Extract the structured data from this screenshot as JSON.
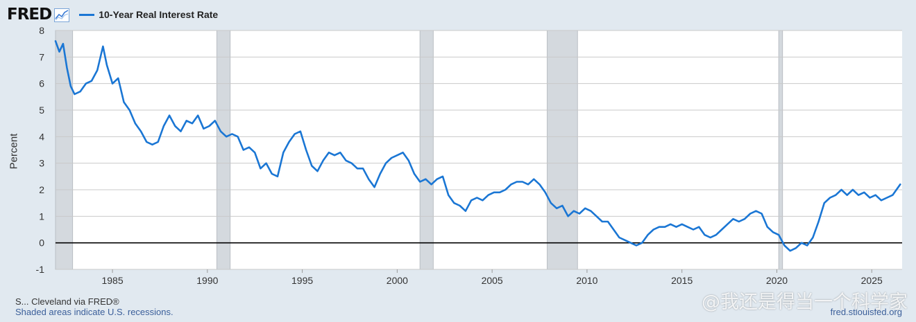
{
  "header": {
    "logo_text": "FRED",
    "logo_icon": "line-chart-icon",
    "legend_label": "10-Year Real Interest Rate"
  },
  "footer": {
    "source_text": "S... Cleveland via FRED®",
    "recession_note": "Shaded areas indicate U.S. recessions.",
    "site": "fred.stlouisfed.org"
  },
  "watermark": "@我还是得当一个科学家",
  "colors": {
    "line": "#1a76d4",
    "recession": "#d4d9de",
    "grid": "#c9c9c9",
    "zero_line": "#000000",
    "plot_bg": "#ffffff"
  },
  "chart_data": {
    "type": "line",
    "xlabel": "",
    "ylabel": "Percent",
    "xlim": [
      1982.0,
      2026.6
    ],
    "ylim": [
      -1,
      8
    ],
    "grid": true,
    "legend_position": "top-left",
    "x_ticks": [
      1985,
      1990,
      1995,
      2000,
      2005,
      2010,
      2015,
      2020,
      2025
    ],
    "y_ticks": [
      -1,
      0,
      1,
      2,
      3,
      4,
      5,
      6,
      7,
      8
    ],
    "recessions": [
      [
        1982.0,
        1982.9
      ],
      [
        1990.5,
        1991.2
      ],
      [
        2001.2,
        2001.9
      ],
      [
        2007.9,
        2009.5
      ],
      [
        2020.1,
        2020.3
      ]
    ],
    "series": [
      {
        "name": "10-Year Real Interest Rate",
        "x": [
          1982.0,
          1982.2,
          1982.4,
          1982.6,
          1982.8,
          1983.0,
          1983.3,
          1983.6,
          1983.9,
          1984.2,
          1984.5,
          1984.7,
          1985.0,
          1985.3,
          1985.6,
          1985.9,
          1986.2,
          1986.5,
          1986.8,
          1987.1,
          1987.4,
          1987.7,
          1988.0,
          1988.3,
          1988.6,
          1988.9,
          1989.2,
          1989.5,
          1989.8,
          1990.1,
          1990.4,
          1990.7,
          1991.0,
          1991.3,
          1991.6,
          1991.9,
          1992.2,
          1992.5,
          1992.8,
          1993.1,
          1993.4,
          1993.7,
          1994.0,
          1994.3,
          1994.6,
          1994.9,
          1995.2,
          1995.5,
          1995.8,
          1996.1,
          1996.4,
          1996.7,
          1997.0,
          1997.3,
          1997.6,
          1997.9,
          1998.2,
          1998.5,
          1998.8,
          1999.1,
          1999.4,
          1999.7,
          2000.0,
          2000.3,
          2000.6,
          2000.9,
          2001.2,
          2001.5,
          2001.8,
          2002.1,
          2002.4,
          2002.7,
          2003.0,
          2003.3,
          2003.6,
          2003.9,
          2004.2,
          2004.5,
          2004.8,
          2005.1,
          2005.4,
          2005.7,
          2006.0,
          2006.3,
          2006.6,
          2006.9,
          2007.2,
          2007.5,
          2007.8,
          2008.1,
          2008.4,
          2008.7,
          2009.0,
          2009.3,
          2009.6,
          2009.9,
          2010.2,
          2010.5,
          2010.8,
          2011.1,
          2011.4,
          2011.7,
          2012.0,
          2012.3,
          2012.6,
          2012.9,
          2013.2,
          2013.5,
          2013.8,
          2014.1,
          2014.4,
          2014.7,
          2015.0,
          2015.3,
          2015.6,
          2015.9,
          2016.2,
          2016.5,
          2016.8,
          2017.1,
          2017.4,
          2017.7,
          2018.0,
          2018.3,
          2018.6,
          2018.9,
          2019.2,
          2019.5,
          2019.8,
          2020.1,
          2020.4,
          2020.7,
          2021.0,
          2021.3,
          2021.6,
          2021.9,
          2022.2,
          2022.5,
          2022.8,
          2023.1,
          2023.4,
          2023.7,
          2024.0,
          2024.3,
          2024.6,
          2024.9,
          2025.2,
          2025.5,
          2025.8,
          2026.1,
          2026.5
        ],
        "values": [
          7.6,
          7.2,
          7.5,
          6.6,
          5.9,
          5.6,
          5.7,
          6.0,
          6.1,
          6.5,
          7.4,
          6.7,
          6.0,
          6.2,
          5.3,
          5.0,
          4.5,
          4.2,
          3.8,
          3.7,
          3.8,
          4.4,
          4.8,
          4.4,
          4.2,
          4.6,
          4.5,
          4.8,
          4.3,
          4.4,
          4.6,
          4.2,
          4.0,
          4.1,
          4.0,
          3.5,
          3.6,
          3.4,
          2.8,
          3.0,
          2.6,
          2.5,
          3.4,
          3.8,
          4.1,
          4.2,
          3.5,
          2.9,
          2.7,
          3.1,
          3.4,
          3.3,
          3.4,
          3.1,
          3.0,
          2.8,
          2.8,
          2.4,
          2.1,
          2.6,
          3.0,
          3.2,
          3.3,
          3.4,
          3.1,
          2.6,
          2.3,
          2.4,
          2.2,
          2.4,
          2.5,
          1.8,
          1.5,
          1.4,
          1.2,
          1.6,
          1.7,
          1.6,
          1.8,
          1.9,
          1.9,
          2.0,
          2.2,
          2.3,
          2.3,
          2.2,
          2.4,
          2.2,
          1.9,
          1.5,
          1.3,
          1.4,
          1.0,
          1.2,
          1.1,
          1.3,
          1.2,
          1.0,
          0.8,
          0.8,
          0.5,
          0.2,
          0.1,
          0.0,
          -0.1,
          0.0,
          0.3,
          0.5,
          0.6,
          0.6,
          0.7,
          0.6,
          0.7,
          0.6,
          0.5,
          0.6,
          0.3,
          0.2,
          0.3,
          0.5,
          0.7,
          0.9,
          0.8,
          0.9,
          1.1,
          1.2,
          1.1,
          0.6,
          0.4,
          0.3,
          -0.1,
          -0.3,
          -0.2,
          0.0,
          -0.1,
          0.2,
          0.8,
          1.5,
          1.7,
          1.8,
          2.0,
          1.8,
          2.0,
          1.8,
          1.9,
          1.7,
          1.8,
          1.6,
          1.7,
          1.8,
          2.2
        ]
      }
    ]
  }
}
